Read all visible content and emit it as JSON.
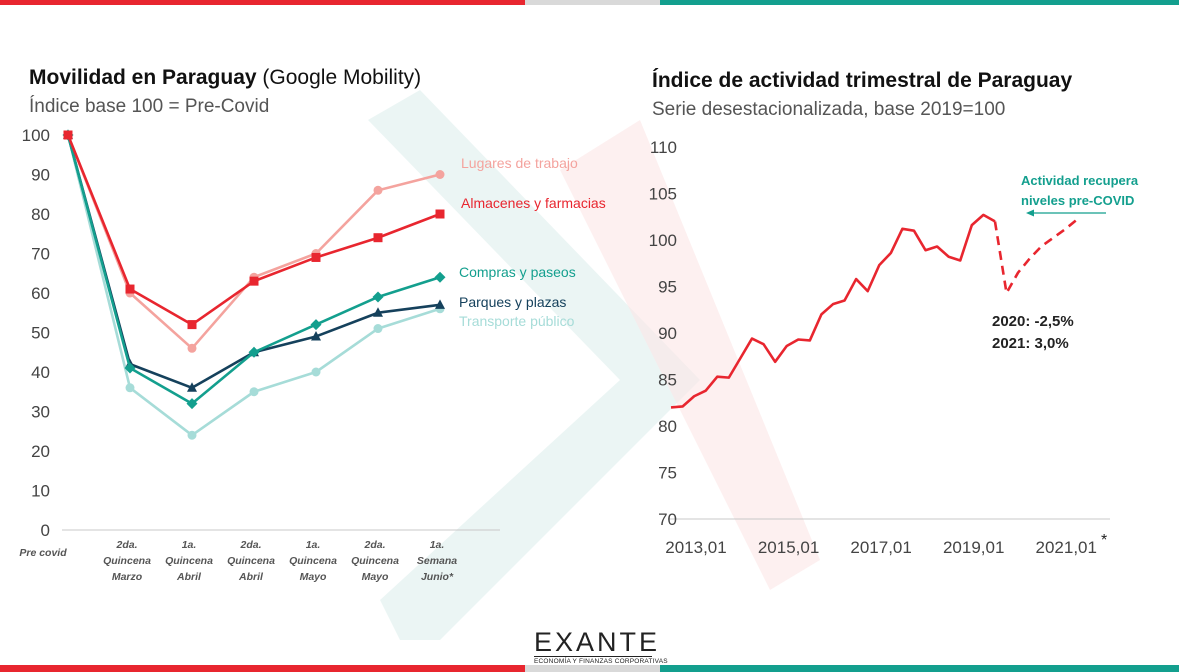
{
  "colors": {
    "red": "#e8262f",
    "teal": "#139f8e",
    "grey": "#d9d9d9",
    "pink": "#f4a39e",
    "navy": "#15415c",
    "light_teal": "#a6dcd8"
  },
  "left": {
    "title_bold": "Movilidad en Paraguay",
    "title_light": "(Google Mobility)",
    "subtitle": "Índice base 100 = Pre-Covid"
  },
  "right": {
    "title": "Índice de actividad trimestral de Paraguay",
    "subtitle": "Serie desestacionalizada, base 2019=100",
    "annotation_line1": "Actividad recupera",
    "annotation_line2": "niveles pre-COVID",
    "note_2020": "2020: -2,5%",
    "note_2021": "2021: 3,0%",
    "asterisk": "*"
  },
  "logo": {
    "word": "EXANTE",
    "tagline": "ECONOMÍA Y FINANZAS CORPORATIVAS"
  },
  "chart_data": [
    {
      "type": "line",
      "title": "Movilidad en Paraguay (Google Mobility)",
      "subtitle": "Índice base 100 = Pre-Covid",
      "categories": [
        [
          "Pre covid"
        ],
        [
          "2da.",
          "Quincena",
          "Marzo"
        ],
        [
          "1a.",
          "Quincena",
          "Abril"
        ],
        [
          "2da.",
          "Quincena",
          "Abril"
        ],
        [
          "1a.",
          "Quincena",
          "Mayo"
        ],
        [
          "2da.",
          "Quincena",
          "Mayo"
        ],
        [
          "1a.",
          "Semana",
          "Junio*"
        ]
      ],
      "ylim": [
        0,
        100
      ],
      "yticks": [
        0,
        10,
        20,
        30,
        40,
        50,
        60,
        70,
        80,
        90,
        100
      ],
      "grid": false,
      "series": [
        {
          "name": "Lugares de trabajo",
          "color": "#f4a39e",
          "marker": "circle",
          "values": [
            100,
            60,
            46,
            64,
            70,
            86,
            90
          ]
        },
        {
          "name": "Almacenes y farmacias",
          "color": "#e8262f",
          "marker": "square",
          "values": [
            100,
            61,
            52,
            63,
            69,
            74,
            80
          ]
        },
        {
          "name": "Compras y paseos",
          "color": "#139f8e",
          "marker": "diamond",
          "values": [
            100,
            41,
            32,
            45,
            52,
            59,
            64
          ]
        },
        {
          "name": "Parques y plazas",
          "color": "#15415c",
          "marker": "triangle",
          "values": [
            100,
            42,
            36,
            45,
            49,
            55,
            57
          ]
        },
        {
          "name": "Transporte público",
          "color": "#a6dcd8",
          "marker": "circle",
          "values": [
            100,
            36,
            24,
            35,
            40,
            51,
            56
          ]
        }
      ]
    },
    {
      "type": "line",
      "title": "Índice de actividad trimestral de Paraguay",
      "subtitle": "Serie desestacionalizada, base 2019=100",
      "x_tick_labels": [
        "2013,01",
        "2015,01",
        "2017,01",
        "2019,01",
        "2021,01"
      ],
      "yticks": [
        70,
        75,
        80,
        85,
        90,
        95,
        100,
        105,
        110
      ],
      "ylim": [
        70,
        110
      ],
      "grid": false,
      "series": [
        {
          "name": "",
          "color": "#e8262f",
          "style": "solid",
          "x": [
            "2013,01",
            "2013,02",
            "2013,03",
            "2013,04",
            "2014,01",
            "2014,02",
            "2014,03",
            "2014,04",
            "2015,01",
            "2015,02",
            "2015,03",
            "2015,04",
            "2016,01",
            "2016,02",
            "2016,03",
            "2016,04",
            "2017,01",
            "2017,02",
            "2017,03",
            "2017,04",
            "2018,01",
            "2018,02",
            "2018,03",
            "2018,04",
            "2019,01",
            "2019,02",
            "2019,03",
            "2019,04",
            "2020,01"
          ],
          "values": [
            82.0,
            82.1,
            83.2,
            83.8,
            85.3,
            85.2,
            87.3,
            89.4,
            88.8,
            86.9,
            88.6,
            89.3,
            89.2,
            92.0,
            93.1,
            93.5,
            95.8,
            94.5,
            97.3,
            98.6,
            101.2,
            101.0,
            98.9,
            99.3,
            98.2,
            97.8,
            101.6,
            102.7,
            102.0
          ]
        },
        {
          "name": "",
          "color": "#e8262f",
          "style": "dashed",
          "x": [
            "2020,01",
            "2020,02",
            "2020,03",
            "2020,04",
            "2021,01",
            "2021,02",
            "2021,03",
            "2021,04"
          ],
          "values": [
            102.0,
            94.3,
            96.5,
            98.0,
            99.3,
            100.2,
            101.1,
            102.1
          ]
        }
      ]
    }
  ]
}
